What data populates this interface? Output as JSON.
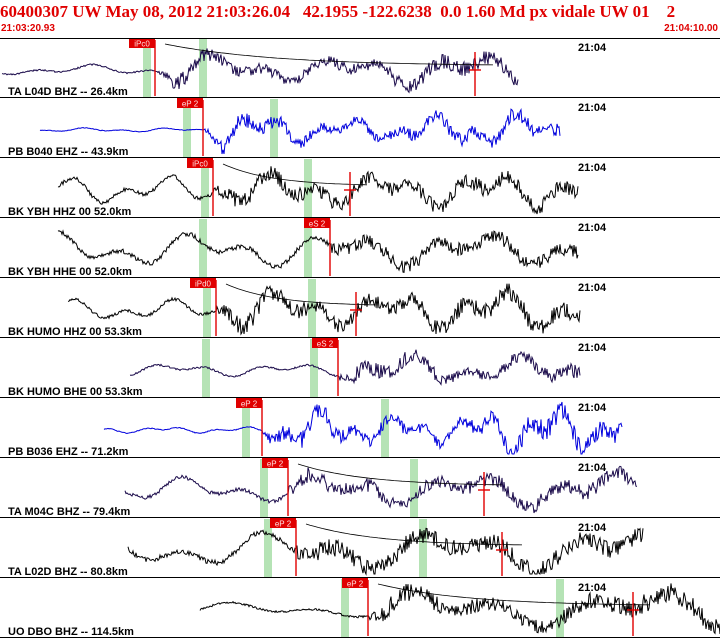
{
  "header": {
    "title": "60400307 UW May 08, 2012 21:03:26.04   42.1955 -122.6238  0.0 1.60 Md px vidale UW 01    2",
    "start_time": "21:03:20.93",
    "end_time": "21:04:10.00"
  },
  "colors": {
    "header_text": "#e00000",
    "pick_flag": "#e00000",
    "pick_line": "#e00000",
    "window_band": "#b5e3b5",
    "trace_dark": "#1a0a4a",
    "trace_blue": "#0000dd",
    "trace_black": "#000000",
    "row_border": "#000000"
  },
  "traces": [
    {
      "label": "TA L04D BHZ -- 26.4km",
      "time_mark": "21:04",
      "color": "dark",
      "start": 2,
      "end": 518,
      "seed": 3,
      "freq": 0.11,
      "amp_pre": 5,
      "amp_post": 17,
      "picks": [
        {
          "label": "iPc0",
          "x": 155,
          "label_side": "left",
          "high": true
        },
        {
          "label": "",
          "x": 475,
          "label_side": "left",
          "high": false
        }
      ],
      "bands": [
        147,
        203
      ],
      "coda": true
    },
    {
      "label": "PB B040 EHZ -- 43.9km",
      "time_mark": "21:04",
      "color": "blue",
      "start": 40,
      "end": 560,
      "seed": 7,
      "freq": 0.16,
      "amp_pre": 2,
      "amp_post": 18,
      "picks": [
        {
          "label": "eP 2",
          "x": 203,
          "label_side": "left",
          "high": true
        }
      ],
      "bands": [
        187,
        274
      ],
      "coda": false
    },
    {
      "label": "BK YBH HHZ 00 52.0km",
      "time_mark": "21:04",
      "color": "black",
      "start": 58,
      "end": 578,
      "seed": 11,
      "freq": 0.13,
      "amp_pre": 13,
      "amp_post": 17,
      "picks": [
        {
          "label": "iPc0",
          "x": 213,
          "label_side": "left",
          "high": true
        },
        {
          "label": "",
          "x": 350,
          "label_side": "left",
          "high": false
        }
      ],
      "bands": [
        205,
        308
      ],
      "coda": true
    },
    {
      "label": "BK YBH HHE 00 52.0km",
      "time_mark": "21:04",
      "color": "black",
      "start": 58,
      "end": 578,
      "seed": 17,
      "freq": 0.1,
      "amp_pre": 16,
      "amp_post": 15,
      "picks": [
        {
          "label": "eS 2",
          "x": 330,
          "label_side": "left",
          "high": true
        }
      ],
      "bands": [
        203,
        308
      ],
      "coda": false
    },
    {
      "label": "BK HUMO HHZ 00 53.3km",
      "time_mark": "21:04",
      "color": "black",
      "start": 68,
      "end": 580,
      "seed": 23,
      "freq": 0.13,
      "amp_pre": 10,
      "amp_post": 20,
      "picks": [
        {
          "label": "iPd0",
          "x": 216,
          "label_side": "left",
          "high": true
        },
        {
          "label": "",
          "x": 356,
          "label_side": "left",
          "high": false
        }
      ],
      "bands": [
        207,
        312
      ],
      "coda": true
    },
    {
      "label": "BK HUMO BHE 00 53.3km",
      "time_mark": "21:04",
      "color": "dark",
      "start": 130,
      "end": 580,
      "seed": 29,
      "freq": 0.12,
      "amp_pre": 6,
      "amp_post": 18,
      "picks": [
        {
          "label": "eS 2",
          "x": 338,
          "label_side": "left",
          "high": true
        }
      ],
      "bands": [
        206,
        314
      ],
      "coda": false
    },
    {
      "label": "PB B036 EHZ -- 71.2km",
      "time_mark": "21:04",
      "color": "blue",
      "start": 104,
      "end": 622,
      "seed": 31,
      "freq": 0.18,
      "amp_pre": 3,
      "amp_post": 22,
      "picks": [
        {
          "label": "eP 2",
          "x": 262,
          "label_side": "left",
          "high": true
        }
      ],
      "bands": [
        246,
        385
      ],
      "coda": false
    },
    {
      "label": "TA M04C BHZ -- 79.4km",
      "time_mark": "21:04",
      "color": "dark",
      "start": 125,
      "end": 637,
      "seed": 37,
      "freq": 0.1,
      "amp_pre": 12,
      "amp_post": 17,
      "picks": [
        {
          "label": "eP 2",
          "x": 288,
          "label_side": "left",
          "high": true
        },
        {
          "label": "",
          "x": 484,
          "label_side": "left",
          "high": false
        }
      ],
      "bands": [
        264,
        414
      ],
      "coda": true
    },
    {
      "label": "TA L02D BHZ -- 80.8km",
      "time_mark": "21:04",
      "color": "black",
      "start": 128,
      "end": 643,
      "seed": 41,
      "freq": 0.08,
      "amp_pre": 17,
      "amp_post": 20,
      "picks": [
        {
          "label": "eP 2",
          "x": 296,
          "label_side": "left",
          "high": true
        },
        {
          "label": "",
          "x": 502,
          "label_side": "left",
          "high": false
        }
      ],
      "bands": [
        268,
        423
      ],
      "coda": true
    },
    {
      "label": "UO DBO BHZ -- 114.5km",
      "time_mark": "21:04",
      "color": "black",
      "start": 200,
      "end": 720,
      "seed": 43,
      "freq": 0.07,
      "amp_pre": 7,
      "amp_post": 22,
      "picks": [
        {
          "label": "eP 2",
          "x": 368,
          "label_side": "left",
          "high": true
        },
        {
          "label": "",
          "x": 633,
          "label_side": "left",
          "high": false
        }
      ],
      "bands": [
        345,
        560
      ],
      "coda": true
    }
  ]
}
